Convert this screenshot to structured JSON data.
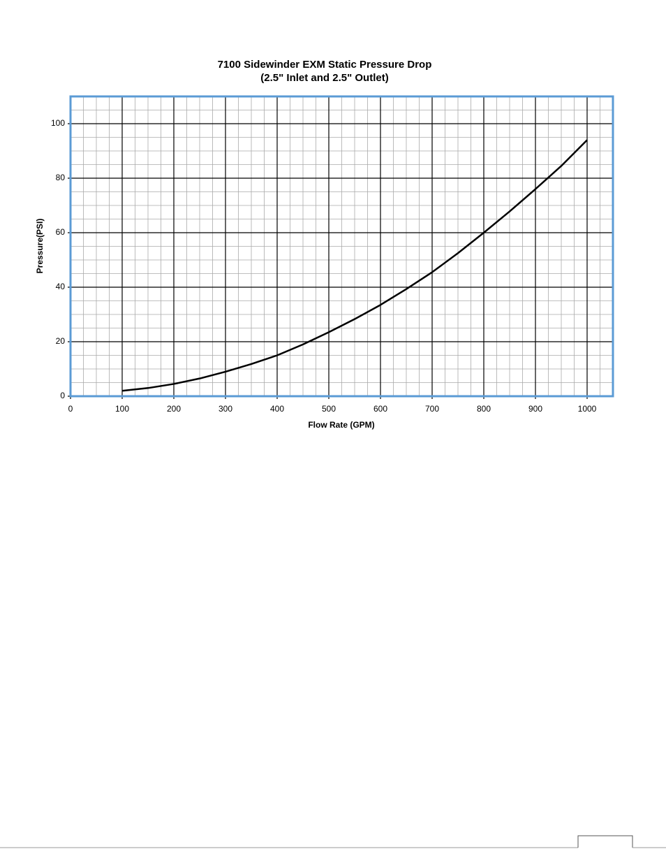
{
  "chart_data": {
    "type": "line",
    "title": "7100 Sidewinder EXM Static Pressure Drop",
    "subtitle": "(2.5\" Inlet and 2.5\" Outlet)",
    "x_label": "Flow Rate (GPM)",
    "y_label": "Pressure(PSI)",
    "x": [
      100,
      150,
      200,
      250,
      300,
      350,
      400,
      450,
      500,
      550,
      600,
      650,
      700,
      750,
      800,
      850,
      900,
      950,
      1000
    ],
    "series": [
      {
        "name": "Pressure",
        "color": "#000000",
        "values": [
          2,
          3,
          4.5,
          6.5,
          9,
          11.8,
          15,
          19,
          23.5,
          28.3,
          33.5,
          39.3,
          45.5,
          52.5,
          60,
          67.8,
          76,
          84.5,
          94
        ]
      }
    ],
    "xlim": [
      0,
      1050
    ],
    "ylim": [
      0,
      110
    ],
    "xticks": [
      0,
      100,
      200,
      300,
      400,
      500,
      600,
      700,
      800,
      900,
      1000
    ],
    "yticks": [
      0,
      20,
      40,
      60,
      80,
      100
    ],
    "grid": true,
    "minor_grid": {
      "x": 25,
      "y": 5
    },
    "frame_color": "#5b9bd5"
  }
}
